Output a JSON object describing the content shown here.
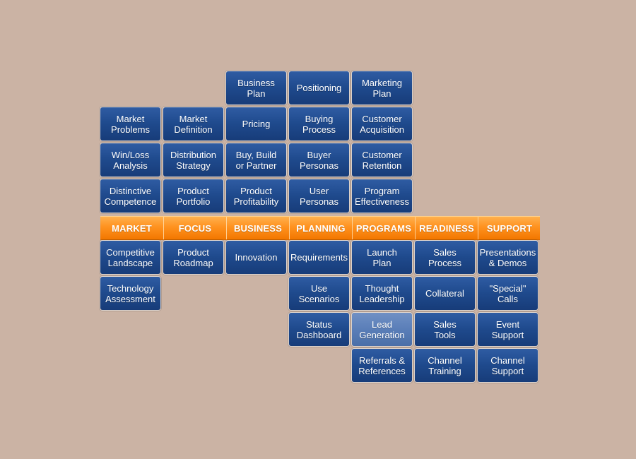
{
  "band": {
    "labels": [
      "MARKET",
      "FOCUS",
      "BUSINESS",
      "PLANNING",
      "PROGRAMS",
      "READINESS",
      "SUPPORT"
    ]
  },
  "tiles": {
    "business_plan": "Business\nPlan",
    "positioning": "Positioning",
    "marketing_plan": "Marketing\nPlan",
    "market_problems": "Market\nProblems",
    "market_definition": "Market\nDefinition",
    "pricing": "Pricing",
    "buying_process": "Buying\nProcess",
    "customer_acquisition": "Customer\nAcquisition",
    "win_loss": "Win/Loss\nAnalysis",
    "distribution_strategy": "Distribution\nStrategy",
    "buy_build_partner": "Buy, Build\nor Partner",
    "buyer_personas": "Buyer\nPersonas",
    "customer_retention": "Customer\nRetention",
    "distinctive_competence": "Distinctive\nCompetence",
    "product_portfolio": "Product\nPortfolio",
    "product_profitability": "Product\nProfitability",
    "user_personas": "User\nPersonas",
    "program_effectiveness": "Program\nEffectiveness",
    "competitive_landscape": "Competitive\nLandscape",
    "product_roadmap": "Product\nRoadmap",
    "innovation": "Innovation",
    "requirements": "Requirements",
    "launch_plan": "Launch\nPlan",
    "sales_process": "Sales\nProcess",
    "presentations_demos": "Presentations\n& Demos",
    "technology_assessment": "Technology\nAssessment",
    "use_scenarios": "Use\nScenarios",
    "thought_leadership": "Thought\nLeadership",
    "collateral": "Collateral",
    "special_calls": "\"Special\"\nCalls",
    "status_dashboard": "Status\nDashboard",
    "lead_generation": "Lead\nGeneration",
    "sales_tools": "Sales\nTools",
    "event_support": "Event\nSupport",
    "referrals_references": "Referrals &\nReferences",
    "channel_training": "Channel\nTraining",
    "channel_support": "Channel\nSupport"
  },
  "colors": {
    "background": "#cbb3a4",
    "tile_blue": "#1f4a8d",
    "tile_highlight": "#5a7eb8",
    "band_orange": "#ff921f"
  }
}
